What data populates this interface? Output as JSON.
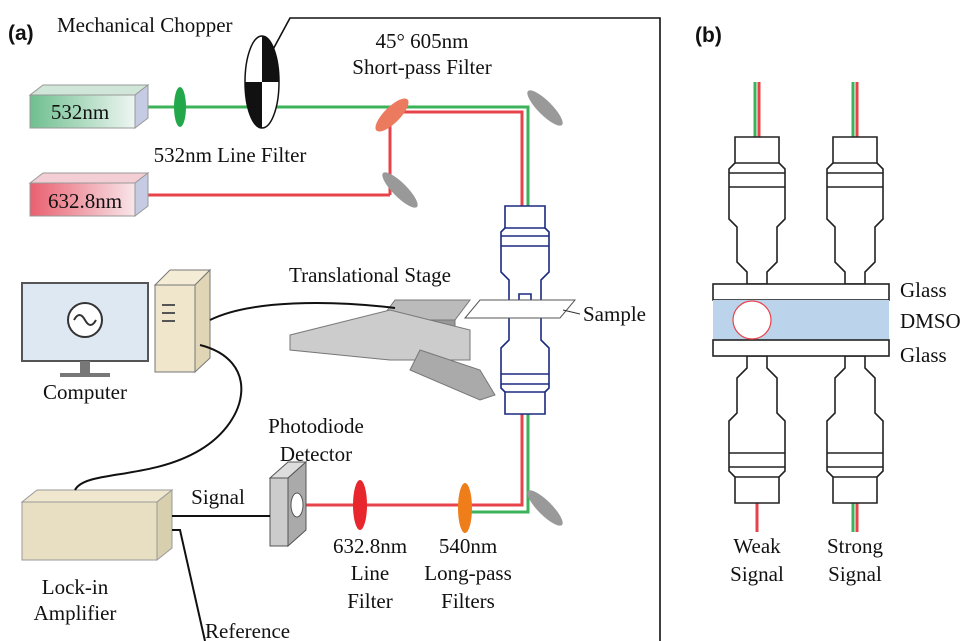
{
  "panel_a": {
    "label": "(a)",
    "chopper": "Mechanical Chopper",
    "short_pass_filter": [
      "45° 605nm",
      "Short-pass Filter"
    ],
    "laser_green": "532nm",
    "line_filter_green": "532nm Line Filter",
    "laser_red": "632.8nm",
    "stage": "Translational Stage",
    "sample": "Sample",
    "computer": "Computer",
    "photodiode": [
      "Photodiode",
      "Detector"
    ],
    "signal": "Signal",
    "lockin": [
      "Lock-in",
      "Amplifier"
    ],
    "reference": "Reference",
    "line_filter_red": [
      "632.8nm",
      "Line",
      "Filter"
    ],
    "long_pass": [
      "540nm",
      "Long-pass",
      "Filters"
    ]
  },
  "panel_b": {
    "label": "(b)",
    "layers": [
      "Glass",
      "DMSO",
      "Glass"
    ],
    "columns": [
      [
        "Weak",
        "Signal"
      ],
      [
        "Strong",
        "Signal"
      ]
    ]
  }
}
